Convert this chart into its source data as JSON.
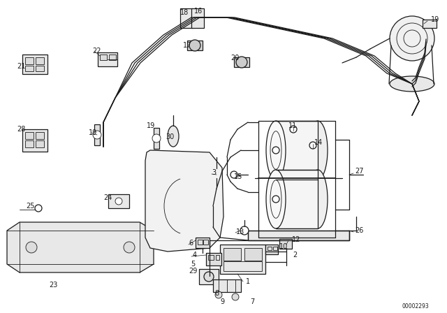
{
  "bg_color": "#ffffff",
  "line_color": "#1a1a1a",
  "diagram_id": "00002293",
  "fig_width": 6.4,
  "fig_height": 4.48,
  "dpi": 100
}
